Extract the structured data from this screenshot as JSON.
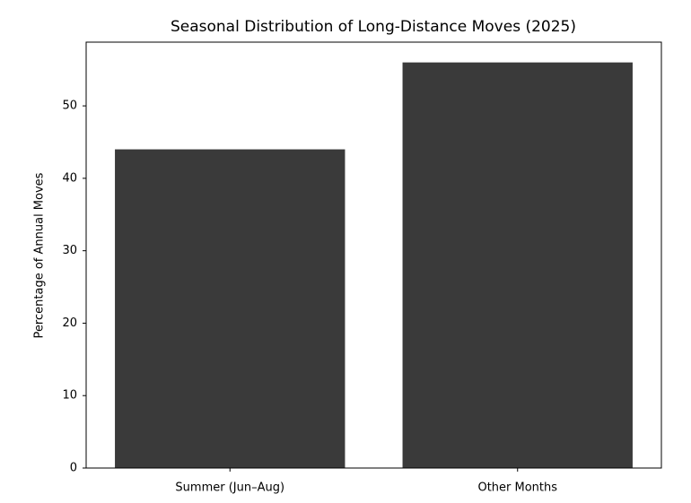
{
  "chart_data": {
    "type": "bar",
    "title": "Seasonal Distribution of Long-Distance Moves (2025)",
    "ylabel": "Percentage of Annual Moves",
    "categories": [
      "Summer (Jun–Aug)",
      "Other Months"
    ],
    "values": [
      44,
      56
    ],
    "color": "#3a3a3a",
    "ylim": [
      0,
      58.8
    ],
    "yticks": [
      0,
      10,
      20,
      30,
      40,
      50
    ],
    "grid": false
  }
}
